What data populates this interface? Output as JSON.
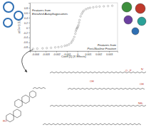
{
  "chart_data": {
    "type": "scatter",
    "x_label": "Coeff [1] (X Effects)",
    "y_label": "p(Corr) [1]",
    "x": [
      -0.0042,
      -0.0038,
      -0.0033,
      -0.0029,
      -0.0025,
      -0.0021,
      -0.0018,
      -0.0015,
      -0.0012,
      -0.001,
      -0.0008,
      -0.0006,
      -0.0005,
      -0.0004,
      -0.0003,
      -0.0002,
      -0.00015,
      -0.0001,
      -5e-05,
      0,
      5e-05,
      0.0001,
      0.00015,
      0.0002,
      0.0003,
      0.0004,
      0.0005,
      0.0006,
      0.0008,
      0.001,
      0.0012,
      0.0015,
      0.0018,
      0.0021,
      0.0025,
      0.0029,
      0.0033
    ],
    "values": [
      -0.86,
      -0.85,
      -0.84,
      -0.83,
      -0.82,
      -0.8,
      -0.79,
      -0.77,
      -0.74,
      -0.72,
      -0.68,
      -0.62,
      -0.55,
      -0.48,
      -0.38,
      -0.25,
      -0.15,
      -0.08,
      -0.03,
      0,
      0.04,
      0.1,
      0.2,
      0.3,
      0.45,
      0.55,
      0.62,
      0.68,
      0.74,
      0.78,
      0.8,
      0.82,
      0.84,
      0.85,
      0.86,
      0.87,
      0.88
    ],
    "color": "#8a8a8a",
    "marker": "circle",
    "xlim": [
      -0.0045,
      0.0038
    ],
    "ylim": [
      -0.95,
      1.0
    ],
    "xticks": [
      -0.004,
      -0.003,
      -0.002,
      -0.001,
      0,
      0.001,
      0.002,
      0.003
    ],
    "yticks": [
      -0.8,
      -0.6,
      -0.4,
      -0.2,
      0,
      0.2,
      0.4,
      0.6,
      0.8
    ],
    "grid": false,
    "annotations": [
      "Features from Enriched Autophagosomes",
      "Features from Post-Nuclear Fraction"
    ],
    "structure_labels": [
      "HO",
      "OH",
      "O",
      "P",
      "N⁺",
      "NH₂",
      "OH"
    ]
  }
}
